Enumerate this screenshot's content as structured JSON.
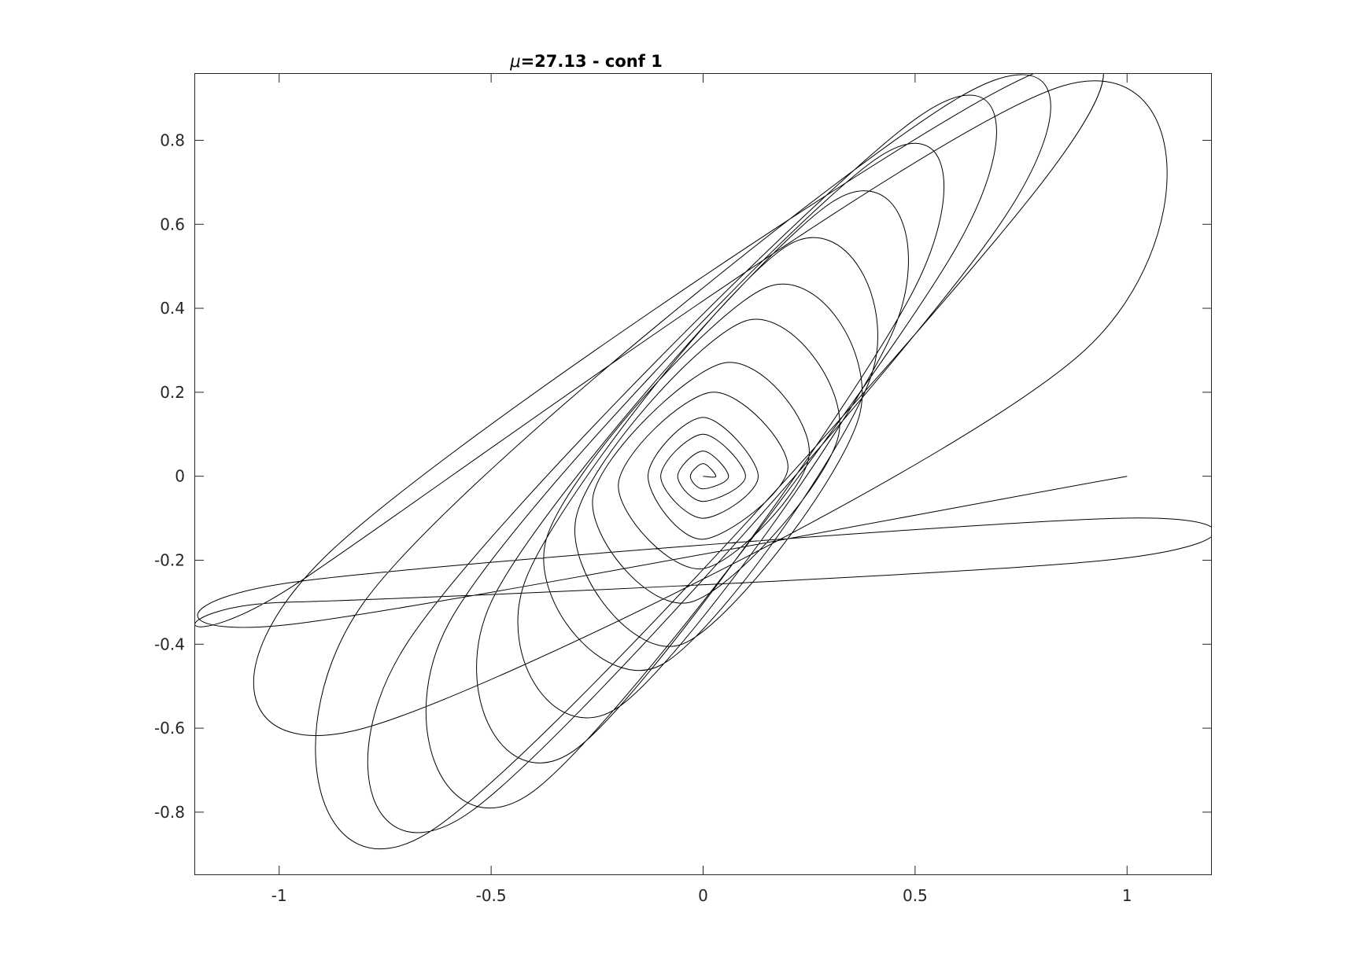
{
  "chart_data": {
    "type": "line",
    "title": {
      "symbol": "μ",
      "text": "=27.13 - conf 1"
    },
    "xlabel": "",
    "ylabel": "",
    "xlim": [
      -1.2,
      1.2
    ],
    "ylim": [
      -0.95,
      0.96
    ],
    "x_ticks": [
      {
        "value": -1,
        "label": "-1"
      },
      {
        "value": -0.5,
        "label": "-0.5"
      },
      {
        "value": 0,
        "label": "0"
      },
      {
        "value": 0.5,
        "label": "0.5"
      },
      {
        "value": 1,
        "label": "1"
      }
    ],
    "y_ticks": [
      {
        "value": -0.8,
        "label": "-0.8"
      },
      {
        "value": -0.6,
        "label": "-0.6"
      },
      {
        "value": -0.4,
        "label": "-0.4"
      },
      {
        "value": -0.2,
        "label": "-0.2"
      },
      {
        "value": 0,
        "label": "0"
      },
      {
        "value": 0.2,
        "label": "0.2"
      },
      {
        "value": 0.4,
        "label": "0.4"
      },
      {
        "value": 0.6,
        "label": "0.6"
      },
      {
        "value": 0.8,
        "label": "0.8"
      }
    ],
    "grid": false,
    "line_color": "#000000",
    "series": [
      {
        "description_of_shape": "single continuous trajectory of precessing elliptical orbits spiralling from the center outward",
        "x": [
          0.0,
          0.03,
          0.0,
          -0.03,
          0.0,
          0.06,
          0.0,
          -0.06,
          0.0,
          0.1,
          0.0,
          -0.1,
          0.0,
          0.13,
          0.0,
          -0.13,
          0.0,
          0.2,
          0.02,
          -0.2,
          0.0,
          0.25,
          0.05,
          -0.26,
          -0.03,
          0.32,
          0.1,
          -0.3,
          -0.05,
          0.37,
          0.15,
          -0.37,
          -0.1,
          0.4,
          0.2,
          -0.42,
          -0.2,
          0.45,
          0.3,
          -0.5,
          -0.3,
          0.5,
          0.4,
          -0.6,
          -0.4,
          0.6,
          0.5,
          -0.7,
          -0.55,
          0.7,
          0.6,
          -0.8,
          -0.65,
          0.8,
          0.7,
          -0.9,
          -0.8,
          0.9,
          0.85,
          -0.95,
          -0.98,
          0.95,
          0.98,
          -0.95,
          -0.95,
          1.0
        ],
        "y": [
          0.0,
          0.0,
          0.03,
          0.0,
          -0.03,
          0.0,
          0.06,
          0.0,
          -0.06,
          0.0,
          0.1,
          0.0,
          -0.1,
          0.0,
          0.14,
          0.0,
          -0.15,
          0.02,
          0.2,
          -0.02,
          -0.22,
          0.05,
          0.27,
          -0.05,
          -0.3,
          0.1,
          0.37,
          -0.1,
          -0.4,
          0.15,
          0.45,
          -0.15,
          -0.45,
          0.25,
          0.55,
          -0.25,
          -0.55,
          0.35,
          0.65,
          -0.3,
          -0.65,
          0.45,
          0.75,
          -0.35,
          -0.75,
          0.55,
          0.85,
          -0.4,
          -0.8,
          0.6,
          0.9,
          -0.3,
          -0.85,
          0.7,
          0.92,
          -0.2,
          -0.6,
          0.3,
          0.93,
          -0.25,
          -0.3,
          -0.2,
          -0.1,
          -0.25,
          -0.35,
          0.0
        ]
      }
    ]
  }
}
